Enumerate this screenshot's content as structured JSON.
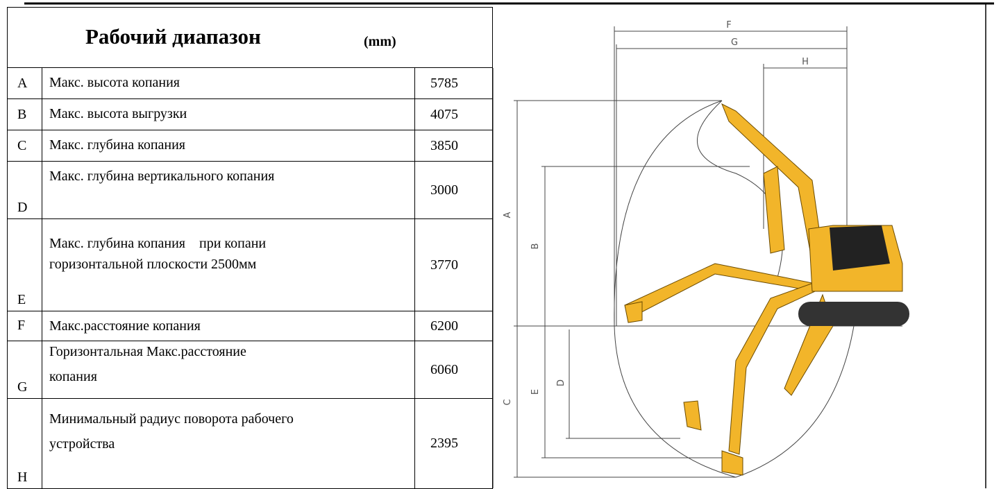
{
  "table": {
    "title": "Рабочий диапазон",
    "unit": "(mm)",
    "rows": [
      {
        "letter": "A",
        "lines": [
          "Макс. высота копания"
        ],
        "value": 5785
      },
      {
        "letter": "B",
        "lines": [
          "Макс. высота выгрузки"
        ],
        "value": 4075
      },
      {
        "letter": "C",
        "lines": [
          "Макс. глубина копания"
        ],
        "value": 3850
      },
      {
        "letter": "D",
        "lines": [
          "Макс. глубина вертикального копания"
        ],
        "value": 3000
      },
      {
        "letter": "E",
        "lines": [
          "Макс. глубина копания　при копани",
          "горизонтальной плоскости 2500мм"
        ],
        "value": 3770
      },
      {
        "letter": "F",
        "lines": [
          "Макс.расстояние копания"
        ],
        "value": 6200
      },
      {
        "letter": "G",
        "lines": [
          "Горизонтальная Макс.расстояние",
          "копания"
        ],
        "value": 6060
      },
      {
        "letter": "H",
        "lines": [
          "Минимальный радиус поворота рабочего",
          "устройства"
        ],
        "value": 2395
      }
    ]
  },
  "diagram": {
    "labels": [
      "F",
      "G",
      "H",
      "A",
      "B",
      "C",
      "D",
      "E"
    ]
  }
}
